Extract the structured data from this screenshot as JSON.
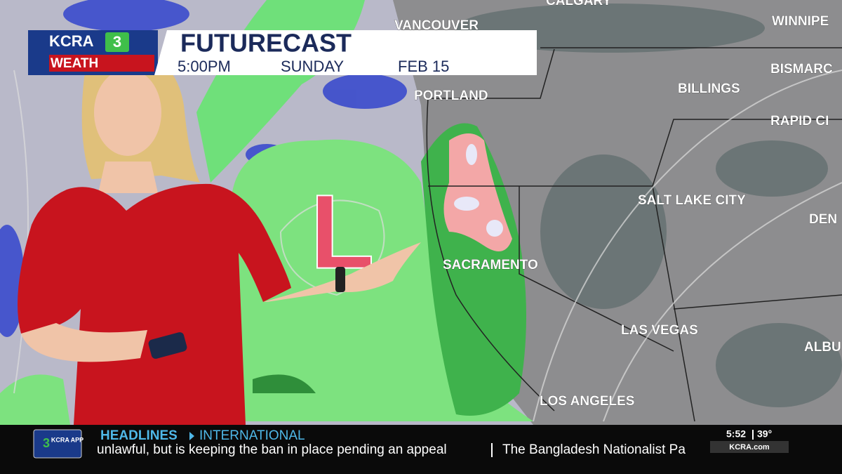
{
  "header": {
    "station": "KCRA",
    "channel": "3",
    "brand": "WEATH",
    "title": "FUTURECAST",
    "time": "5:00PM",
    "day": "SUNDAY",
    "date": "FEB 15"
  },
  "map": {
    "pressure_label": "L",
    "cities": [
      "CALGARY",
      "VANCOUVER",
      "WINNIPE",
      "PORTLAND",
      "BILLINGS",
      "BISMARC",
      "RAPID CI",
      "SALT LAKE CITY",
      "DEN",
      "SACRAMENTO",
      "LAS VEGAS",
      "ALBU",
      "LOS ANGELES"
    ]
  },
  "ticker": {
    "app_label": "KCRA APP",
    "app_logo": "3",
    "section": "HEADLINES",
    "topic": "INTERNATIONAL",
    "headline_1": "unlawful, but is keeping the ban in place pending an appeal",
    "headline_2": "The Bangladesh Nationalist Pa",
    "clock": "5:52",
    "temperature": "39°",
    "website": "KCRA.com"
  }
}
